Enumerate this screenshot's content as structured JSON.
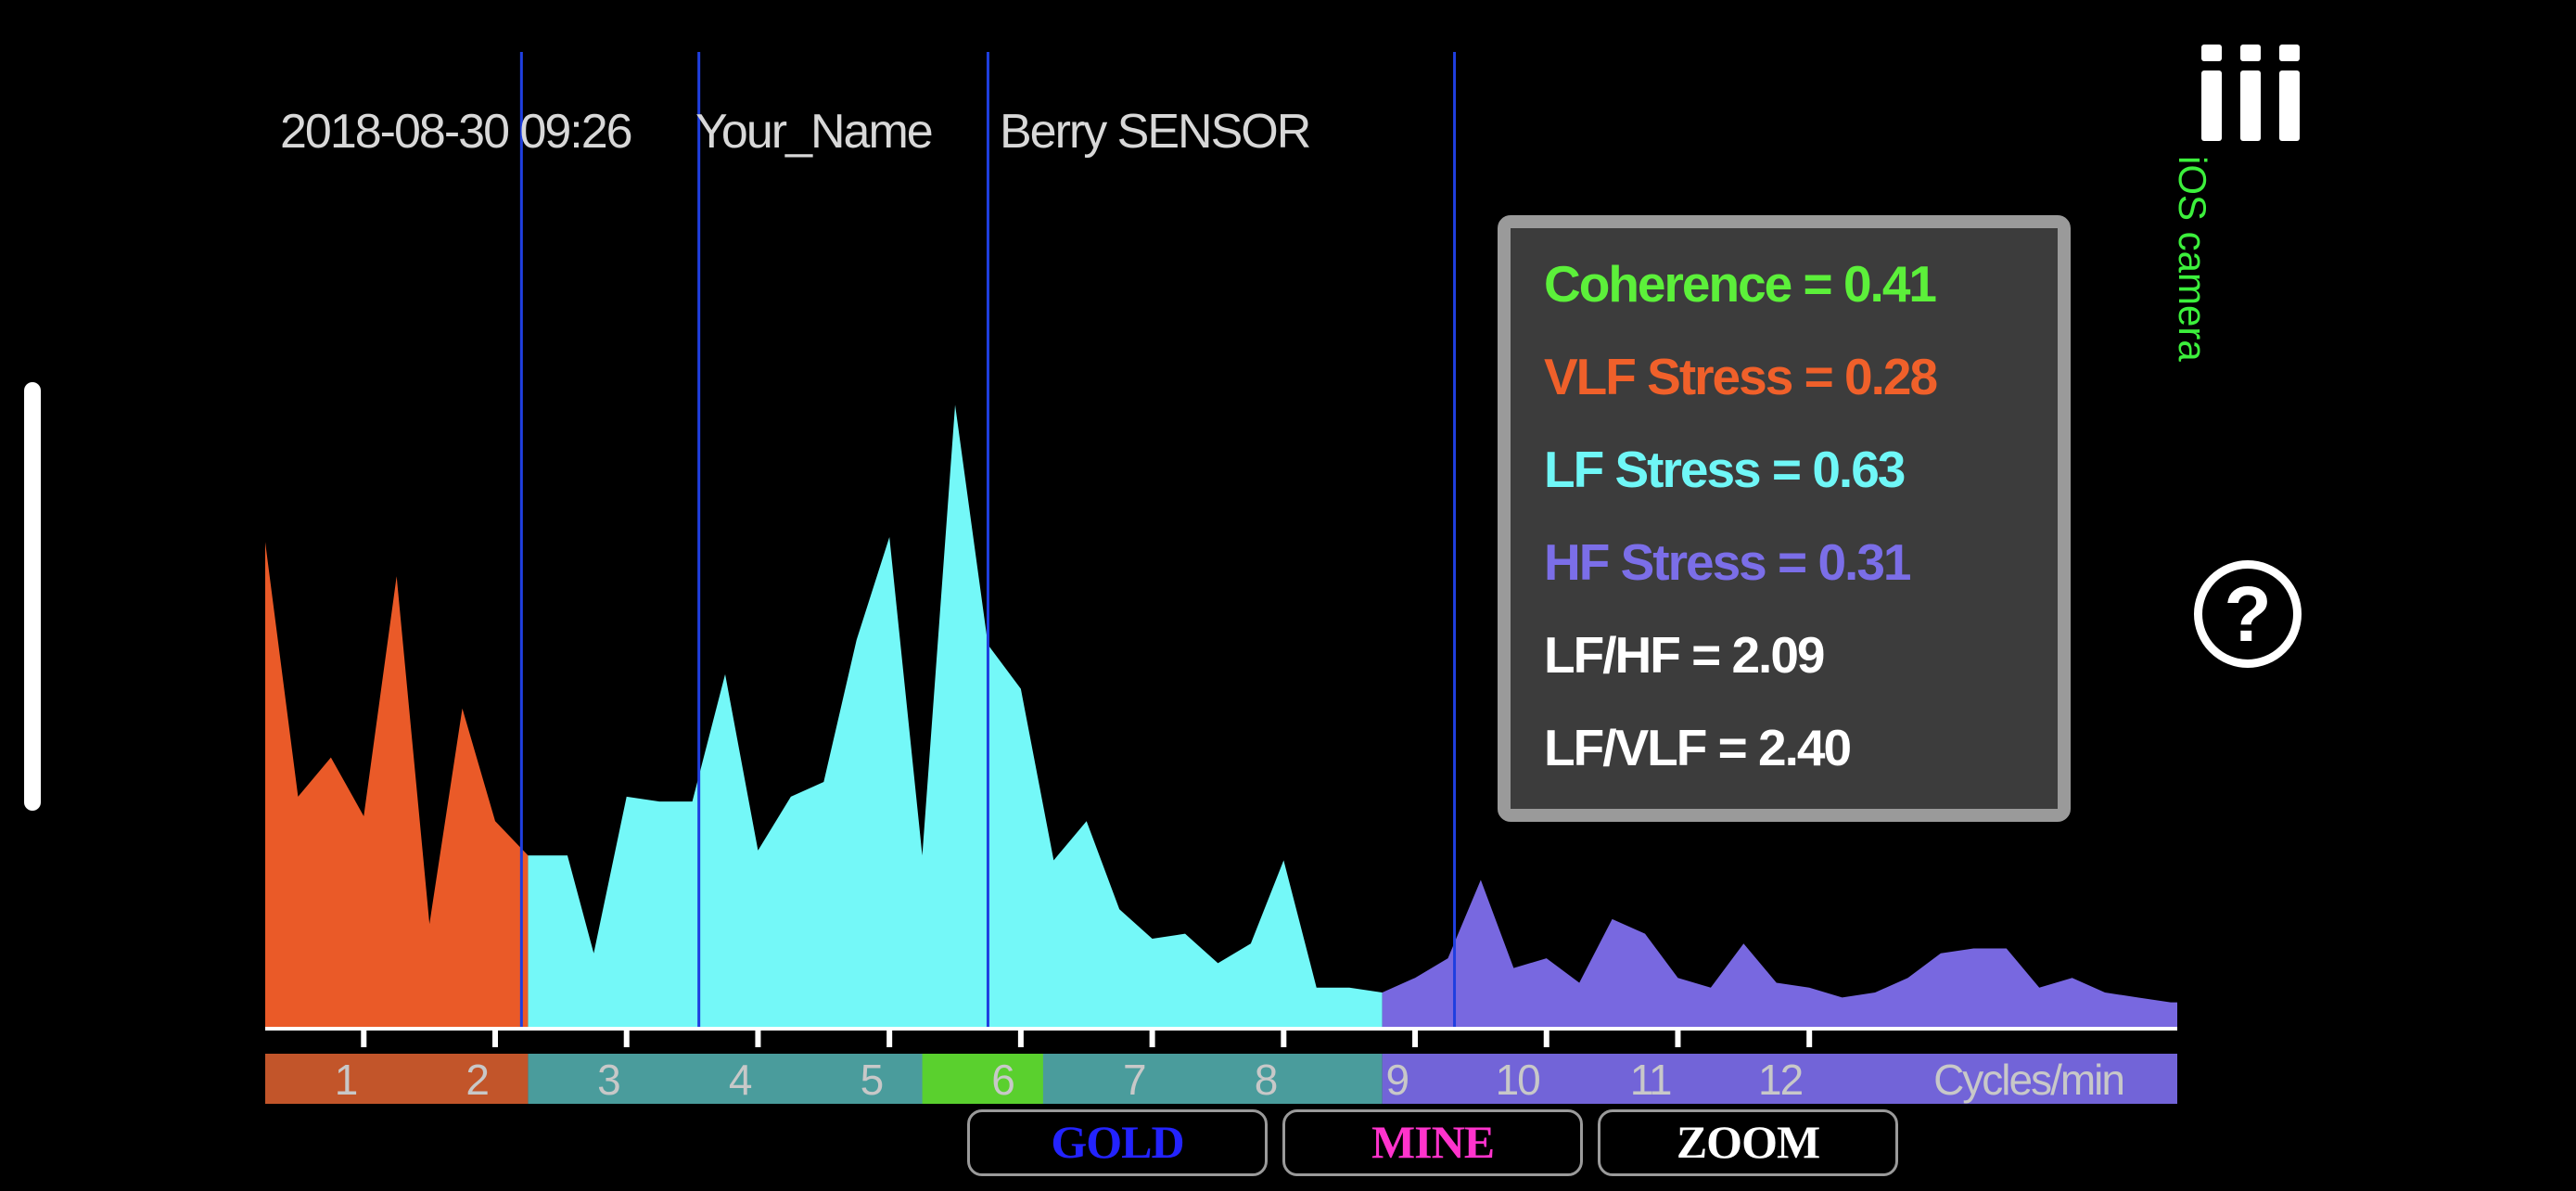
{
  "header": {
    "datetime": "2018-08-30 09:26",
    "user_name": "Your_Name",
    "sensor": "Berry SENSOR"
  },
  "stats": [
    {
      "label": "Coherence = 0.41",
      "color": "#5cf03a"
    },
    {
      "label": "VLF Stress = 0.28",
      "color": "#f0602a"
    },
    {
      "label": "LF Stress = 0.63",
      "color": "#6ff7f7"
    },
    {
      "label": "HF Stress = 0.31",
      "color": "#7b6ee8"
    },
    {
      "label": "LF/HF = 2.09",
      "color": "#ffffff"
    },
    {
      "label": "LF/VLF = 2.40",
      "color": "#ffffff"
    }
  ],
  "side_panel": {
    "camera_label": "iOS camera",
    "menu_icon": "menu-bars-icon",
    "help_icon": "help-circle-icon",
    "help_glyph": "?"
  },
  "buttons": [
    {
      "label": "GOLD",
      "color": "#2323ff"
    },
    {
      "label": "MINE",
      "color": "#ff33cc"
    },
    {
      "label": "ZOOM",
      "color": "#ffffff"
    }
  ],
  "chart_data": {
    "type": "area",
    "xlabel": "Cycles/min",
    "x_ticks": [
      1,
      2,
      3,
      4,
      5,
      6,
      7,
      8,
      9,
      10,
      11,
      12
    ],
    "xlim": [
      0.25,
      14.8
    ],
    "ylim": [
      0,
      1
    ],
    "highlight_tick": 6,
    "marker_lines_x": [
      2.2,
      3.55,
      5.75,
      9.3
    ],
    "bands": [
      {
        "name": "VLF",
        "range": [
          0.25,
          2.25
        ],
        "fill": "#ea5a28",
        "axis_color": "#c2552a"
      },
      {
        "name": "LF",
        "range": [
          2.25,
          8.75
        ],
        "fill": "#74f8f8",
        "axis_color": "#4a9c9c"
      },
      {
        "name": "HF",
        "range": [
          8.75,
          14.8
        ],
        "fill": "#7868e0",
        "axis_color": "#7264d8"
      }
    ],
    "highlight_color": "#5ad02e",
    "marker_color": "#1f3fe0",
    "series": {
      "x": [
        0.25,
        0.5,
        0.75,
        1.0,
        1.25,
        1.5,
        1.75,
        2.0,
        2.25,
        2.55,
        2.75,
        3.0,
        3.25,
        3.5,
        3.75,
        4.0,
        4.25,
        4.5,
        4.75,
        5.0,
        5.25,
        5.5,
        5.75,
        6.0,
        6.25,
        6.5,
        6.75,
        7.0,
        7.25,
        7.5,
        7.75,
        8.0,
        8.25,
        8.5,
        8.75,
        9.0,
        9.25,
        9.5,
        9.75,
        10.0,
        10.25,
        10.5,
        10.75,
        11.0,
        11.25,
        11.5,
        11.75,
        12.0,
        12.25,
        12.5,
        12.75,
        13.0,
        13.25,
        13.5,
        13.75,
        14.0,
        14.25,
        14.5,
        14.75
      ],
      "y": [
        0.99,
        0.47,
        0.55,
        0.43,
        0.92,
        0.21,
        0.65,
        0.42,
        0.35,
        0.35,
        0.15,
        0.47,
        0.46,
        0.46,
        0.72,
        0.36,
        0.47,
        0.5,
        0.79,
        1.0,
        0.35,
        1.27,
        0.78,
        0.69,
        0.34,
        0.42,
        0.24,
        0.18,
        0.19,
        0.13,
        0.17,
        0.34,
        0.08,
        0.08,
        0.07,
        0.1,
        0.14,
        0.3,
        0.12,
        0.14,
        0.09,
        0.22,
        0.19,
        0.1,
        0.08,
        0.17,
        0.09,
        0.08,
        0.06,
        0.07,
        0.1,
        0.15,
        0.16,
        0.16,
        0.08,
        0.1,
        0.07,
        0.06,
        0.05
      ]
    }
  }
}
